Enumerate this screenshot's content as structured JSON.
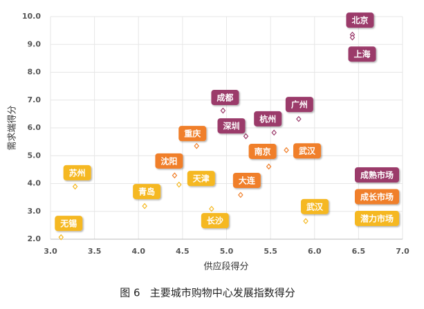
{
  "chart_data": {
    "type": "scatter",
    "caption": "图 6   主要城市购物中心发展指数得分",
    "x_label": "供应段得分",
    "y_label": "需求端得分",
    "xlim": [
      3.0,
      7.0
    ],
    "ylim": [
      2.0,
      10.0
    ],
    "xticks": [
      {
        "value": 3.0,
        "label": "3.0"
      },
      3.5,
      {
        "value": 4.0,
        "label": "4.0"
      },
      4.5,
      {
        "value": 5.0,
        "label": "5.0"
      },
      5.5,
      {
        "value": 6.0,
        "label": "6.0"
      },
      6.5,
      {
        "value": 7.0,
        "label": "7.0"
      }
    ],
    "yticks": [
      {
        "value": 2.0,
        "label": "2.0"
      },
      {
        "value": 3.0,
        "label": "3.0"
      },
      {
        "value": 4.0,
        "label": "4.0"
      },
      {
        "value": 5.0,
        "label": "5.0"
      },
      {
        "value": 6.0,
        "label": "6.0"
      },
      {
        "value": 7.0,
        "label": "7.0"
      },
      {
        "value": 8.0,
        "label": "8.0"
      },
      {
        "value": 9.0,
        "label": "9.0"
      },
      {
        "value": 10.0,
        "label": "10.0"
      }
    ],
    "grid": true,
    "series": [
      {
        "name": "成熟市场",
        "color": "#9b3a6b",
        "labels": [
          "北京",
          "上海",
          "成都",
          "广州",
          "杭州",
          "深圳"
        ],
        "x": [
          6.43,
          6.43,
          4.96,
          5.82,
          5.54,
          5.22
        ],
        "values": [
          9.35,
          9.25,
          6.62,
          6.32,
          5.83,
          5.7
        ]
      },
      {
        "name": "成长市场",
        "color": "#f07f2a",
        "labels": [
          "重庆",
          "武汉",
          "南京",
          "沈阳",
          "大连"
        ],
        "x": [
          4.66,
          5.68,
          5.48,
          4.41,
          5.16
        ],
        "values": [
          5.35,
          5.2,
          4.61,
          4.29,
          3.59
        ]
      },
      {
        "name": "潜力市场",
        "color": "#f5b820",
        "labels": [
          "天津",
          "苏州",
          "青岛",
          "长沙",
          "武汉",
          "无锡"
        ],
        "x": [
          4.46,
          3.28,
          4.07,
          4.83,
          5.9,
          3.12
        ],
        "values": [
          3.96,
          3.89,
          3.19,
          3.09,
          2.65,
          2.07
        ]
      }
    ]
  }
}
